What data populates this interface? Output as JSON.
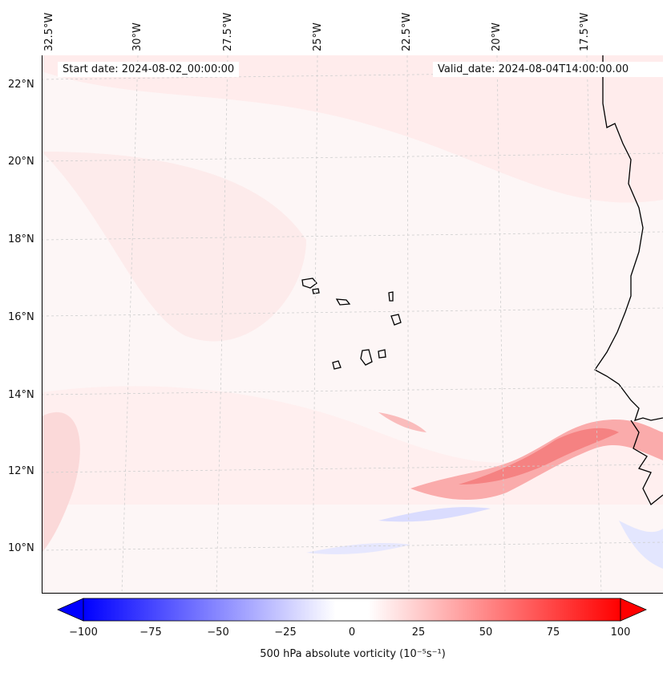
{
  "header": {
    "start_date": "Start date: 2024-08-02_00:00:00",
    "valid_date": "Valid_date: 2024-08-04T14:00:00.00"
  },
  "axes": {
    "longitude_labels": [
      "32.5°W",
      "30°W",
      "27.5°W",
      "25°W",
      "22.5°W",
      "20°W",
      "17.5°W"
    ],
    "latitude_labels": [
      "22°N",
      "20°N",
      "18°N",
      "16°N",
      "14°N",
      "12°N",
      "10°N"
    ]
  },
  "map": {
    "region": "Cabo Verde and West African coast",
    "features": [
      "Cabo Verde islands",
      "Mauritania coastline",
      "Senegal coastline",
      "Gambia",
      "Guinea-Bissau"
    ]
  },
  "colorbar": {
    "label": "500 hPa absolute vorticity (10⁻⁵s⁻¹)",
    "ticks": [
      "−100",
      "−75",
      "−50",
      "−25",
      "0",
      "25",
      "50",
      "75",
      "100"
    ],
    "min": -100,
    "max": 100,
    "colors": {
      "low": "#0000ff",
      "mid": "#ffffff",
      "high": "#ff0000"
    }
  }
}
